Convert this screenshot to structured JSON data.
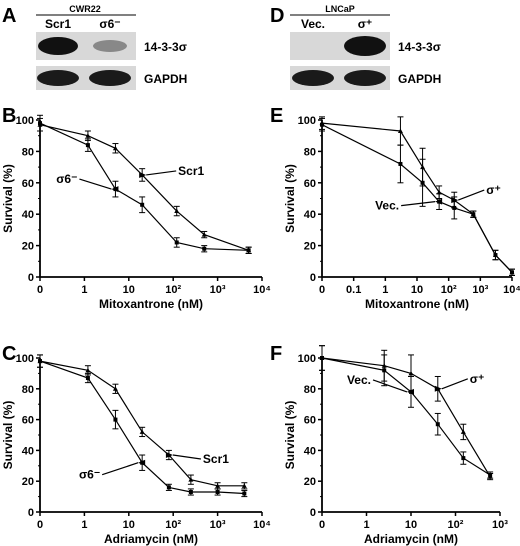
{
  "panels": {
    "A": {
      "label": "A",
      "cell_line": "CWR22",
      "lanes": [
        "Scr1",
        "σ6⁻"
      ],
      "blots": [
        "14-3-3σ",
        "GAPDH"
      ]
    },
    "D": {
      "label": "D",
      "cell_line": "LNCaP",
      "lanes": [
        "Vec.",
        "σ⁺"
      ],
      "blots": [
        "14-3-3σ",
        "GAPDH"
      ]
    }
  },
  "chart_data": [
    {
      "panel": "B",
      "type": "line",
      "xscale": "log",
      "xlabel": "Mitoxantrone (nM)",
      "ylabel": "Survival (%)",
      "xlim": [
        0.1,
        10000
      ],
      "xticks": [
        "0",
        "1",
        "10",
        "10²",
        "10³",
        "10⁴"
      ],
      "ylim": [
        0,
        100
      ],
      "yticks": [
        0,
        20,
        40,
        60,
        80,
        100
      ],
      "series": [
        {
          "name": "Scr1",
          "x": [
            0,
            1.2,
            5,
            20,
            120,
            500,
            5000
          ],
          "y": [
            97,
            90,
            82,
            65,
            42,
            27,
            17
          ],
          "err": [
            4,
            3,
            3,
            4,
            3,
            2,
            2
          ]
        },
        {
          "name": "σ6⁻",
          "x": [
            0,
            1.2,
            5,
            20,
            120,
            500,
            5000
          ],
          "y": [
            98,
            84,
            56,
            46,
            22,
            18,
            17
          ],
          "err": [
            5,
            4,
            5,
            5,
            3,
            2,
            2
          ]
        }
      ],
      "annotations": [
        {
          "text": "σ6⁻"
        },
        {
          "text": "Scr1"
        }
      ]
    },
    {
      "panel": "C",
      "type": "line",
      "xscale": "log",
      "xlabel": "Adriamycin (nM)",
      "ylabel": "Survival (%)",
      "xlim": [
        0.1,
        10000
      ],
      "xticks": [
        "0",
        "1",
        "10",
        "10²",
        "10³",
        "10⁴"
      ],
      "ylim": [
        0,
        100
      ],
      "yticks": [
        0,
        20,
        40,
        60,
        80,
        100
      ],
      "series": [
        {
          "name": "Scr1",
          "x": [
            0,
            1.2,
            5,
            20,
            80,
            250,
            1000,
            4000
          ],
          "y": [
            98,
            92,
            80,
            52,
            37,
            21,
            17,
            17
          ],
          "err": [
            4,
            3,
            3,
            3,
            3,
            3,
            2,
            2
          ]
        },
        {
          "name": "σ6⁻",
          "x": [
            0,
            1.2,
            5,
            20,
            80,
            250,
            1000,
            4000
          ],
          "y": [
            98,
            87,
            60,
            32,
            16,
            13,
            13,
            12
          ],
          "err": [
            4,
            3,
            6,
            5,
            2,
            2,
            2,
            2
          ]
        }
      ],
      "annotations": [
        {
          "text": "σ6⁻"
        },
        {
          "text": "Scr1"
        }
      ]
    },
    {
      "panel": "E",
      "type": "line",
      "xscale": "log",
      "xlabel": "Mitoxantrone (nM)",
      "ylabel": "Survival (%)",
      "xlim": [
        0.01,
        10000
      ],
      "xticks": [
        "0",
        "0.1",
        "1",
        "10",
        "10²",
        "10³",
        "10⁴"
      ],
      "ylim": [
        0,
        100
      ],
      "yticks": [
        0,
        20,
        40,
        60,
        80,
        100
      ],
      "series": [
        {
          "name": "σ⁺",
          "x": [
            0,
            3,
            15,
            50,
            150,
            600,
            3000,
            10000
          ],
          "y": [
            98,
            93,
            70,
            54,
            49,
            40,
            14,
            3
          ],
          "err": [
            4,
            9,
            12,
            4,
            5,
            2,
            3,
            2
          ]
        },
        {
          "name": "Vec.",
          "x": [
            0,
            3,
            15,
            50,
            150,
            600,
            3000,
            10000
          ],
          "y": [
            97,
            72,
            60,
            48,
            44,
            40,
            14,
            3
          ],
          "err": [
            4,
            12,
            15,
            5,
            7,
            2,
            3,
            2
          ]
        }
      ],
      "annotations": [
        {
          "text": "σ⁺"
        },
        {
          "text": "Vec."
        }
      ]
    },
    {
      "panel": "F",
      "type": "line",
      "xscale": "log",
      "xlabel": "Adriamycin (nM)",
      "ylabel": "Survival (%)",
      "xlim": [
        0.1,
        1000
      ],
      "xticks": [
        "0",
        "1",
        "10",
        "10²",
        "10³"
      ],
      "ylim": [
        0,
        100
      ],
      "yticks": [
        0,
        20,
        40,
        60,
        80,
        100
      ],
      "series": [
        {
          "name": "σ⁺",
          "x": [
            0,
            2.5,
            10,
            40,
            150,
            600
          ],
          "y": [
            100,
            95,
            90,
            80,
            52,
            23
          ],
          "err": [
            8,
            10,
            12,
            8,
            5,
            2
          ]
        },
        {
          "name": "Vec.",
          "x": [
            0,
            2.5,
            10,
            40,
            150,
            600
          ],
          "y": [
            100,
            92,
            78,
            57,
            35,
            24
          ],
          "err": [
            8,
            10,
            10,
            7,
            4,
            2
          ]
        }
      ],
      "annotations": [
        {
          "text": "σ⁺"
        },
        {
          "text": "Vec."
        }
      ]
    }
  ]
}
